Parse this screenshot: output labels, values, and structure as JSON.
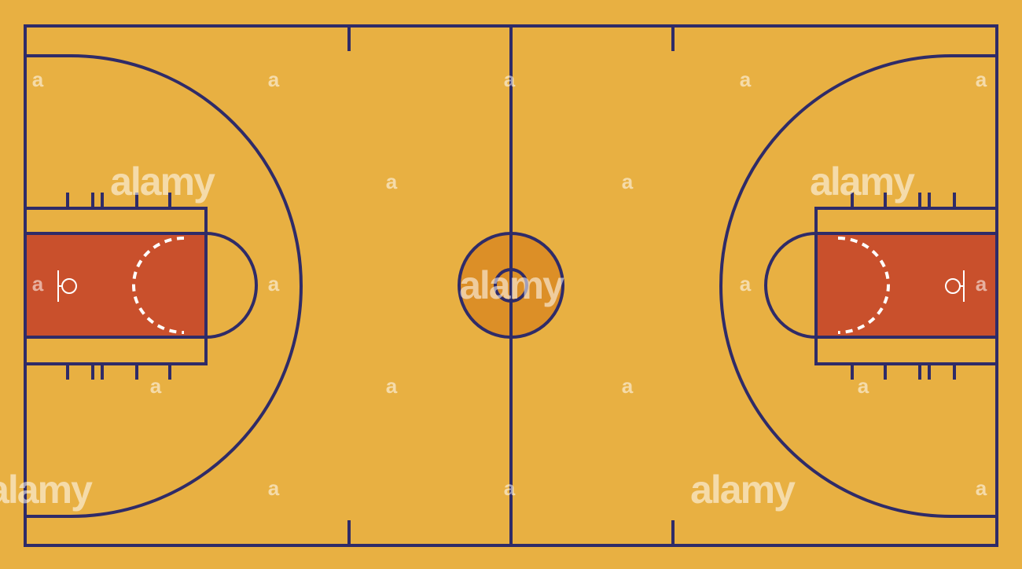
{
  "diagram": {
    "type": "basketball-court",
    "colors": {
      "floor": "#e8b042",
      "lines": "#2f2b68",
      "paint": "#c9502c",
      "center_circle": "#dc8f27",
      "free_throw_dashes": "#ffffff",
      "hoop": "#ffffff"
    }
  },
  "watermark": {
    "text": "alamy",
    "glyph": "a"
  }
}
